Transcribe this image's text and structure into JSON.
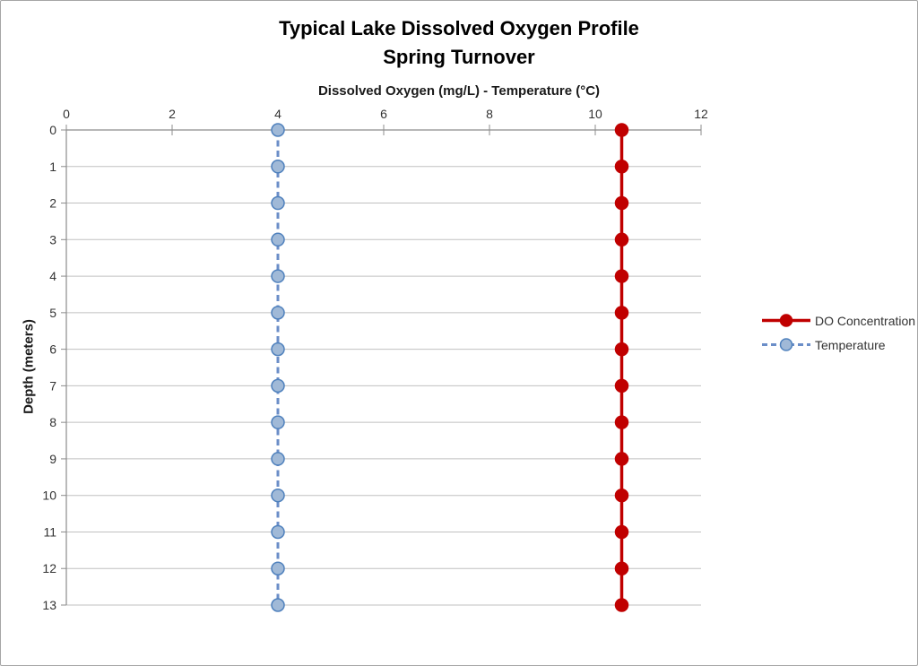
{
  "chart_data": {
    "type": "line",
    "title": "Typical Lake Dissolved Oxygen Profile",
    "subtitle": "Spring Turnover",
    "x_axis_label": "Dissolved Oxygen (mg/L) - Temperature (°C)",
    "y_axis_label": "Depth (meters)",
    "x_axis_position": "top",
    "xlim": [
      0,
      12
    ],
    "x_ticks": [
      0,
      2,
      4,
      6,
      8,
      10,
      12
    ],
    "ylim": [
      0,
      13
    ],
    "depths": [
      0,
      1,
      2,
      3,
      4,
      5,
      6,
      7,
      8,
      9,
      10,
      11,
      12,
      13
    ],
    "y_axis_inverted": true,
    "grid": "horizontal",
    "legend_position": "right",
    "series": [
      {
        "name": "DO Concentration",
        "values": [
          10.5,
          10.5,
          10.5,
          10.5,
          10.5,
          10.5,
          10.5,
          10.5,
          10.5,
          10.5,
          10.5,
          10.5,
          10.5,
          10.5
        ],
        "color": "#C00000",
        "line_style": "solid",
        "line_width": 3.5,
        "marker": "circle",
        "marker_fill": "#C00000",
        "marker_stroke": "#C00000"
      },
      {
        "name": "Temperature",
        "values": [
          4,
          4,
          4,
          4,
          4,
          4,
          4,
          4,
          4,
          4,
          4,
          4,
          4,
          4
        ],
        "color": "#6B8EC8",
        "line_style": "dashed",
        "line_width": 3,
        "marker": "circle",
        "marker_fill": "#A0B9D7",
        "marker_stroke": "#4F81BD"
      }
    ],
    "colors": {
      "grid": "#C0C0C0",
      "axis": "#8C8C8C",
      "tick_text": "#333333",
      "title_text": "#000000"
    }
  }
}
